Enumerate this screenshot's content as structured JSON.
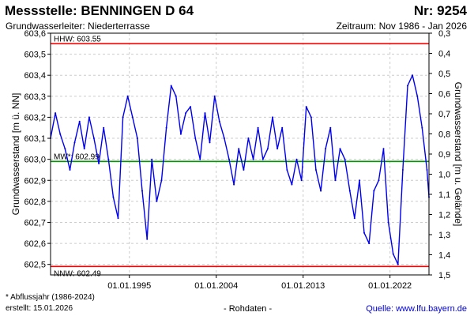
{
  "header": {
    "title": "Messstelle: BENNINGEN D 64",
    "number": "Nr: 9254",
    "aquifer": "Grundwasserleiter:  Niederterrasse",
    "period": "Zeitraum: Nov 1986 - Jan 2026"
  },
  "footer": {
    "footnote": "* Abflussjahr (1986-2024)",
    "created": "erstellt:  15.01.2026",
    "rawdata": "- Rohdaten -",
    "source": "Quelle: www.lfu.bayern.de"
  },
  "colors": {
    "series": "#0000ee",
    "extreme_lines": "#ff0000",
    "mean_line": "#009900",
    "grid": "#cccccc"
  },
  "chart_data": {
    "type": "line",
    "ylabel": "Grundwasserstand [m ü. NN]",
    "y2label": "Grundwasserstand [m u. Gelände]",
    "xlim": [
      "1986-11-01",
      "2026-01-15"
    ],
    "ylim": [
      602.45,
      603.6
    ],
    "y2lim": [
      1.5,
      0.3
    ],
    "yticks": [
      "602,5",
      "602,6",
      "602,7",
      "602,8",
      "602,9",
      "603,0",
      "603,1",
      "603,2",
      "603,3",
      "603,4",
      "603,5",
      "603,6"
    ],
    "y2ticks": [
      "1,5",
      "1,4",
      "1,3",
      "1,2",
      "1,1",
      "1,0",
      "0,9",
      "0,8",
      "0,7",
      "0,6",
      "0,5",
      "0,4",
      "0,3"
    ],
    "xticks": [
      {
        "date": "1995-01-01",
        "label": "01.01.1995"
      },
      {
        "date": "2004-01-01",
        "label": "01.01.2004"
      },
      {
        "date": "2013-01-01",
        "label": "01.01.2013"
      },
      {
        "date": "2022-01-01",
        "label": "01.01.2022"
      }
    ],
    "grid": true,
    "reference_lines": [
      {
        "label": "HHW: 603.55",
        "value": 603.55,
        "kind": "max"
      },
      {
        "label": "MW*: 602.99",
        "value": 602.99,
        "kind": "mean"
      },
      {
        "label": "NNW: 602.49",
        "value": 602.49,
        "kind": "min"
      }
    ],
    "series": [
      {
        "x": [
          "1986-11-01",
          "1987-05-01",
          "1987-11-01",
          "1988-05-01",
          "1988-11-01",
          "1989-05-01",
          "1989-11-01",
          "1990-05-01",
          "1990-11-01",
          "1991-05-01",
          "1991-11-01",
          "1992-05-01",
          "1992-11-01",
          "1993-05-01",
          "1993-11-01",
          "1994-05-01",
          "1994-11-01",
          "1995-05-01",
          "1995-11-01",
          "1996-05-01",
          "1996-11-01",
          "1997-05-01",
          "1997-11-01",
          "1998-05-01",
          "1998-11-01",
          "1999-05-01",
          "1999-11-01",
          "2000-05-01",
          "2000-11-01",
          "2001-05-01",
          "2001-11-01",
          "2002-05-01",
          "2002-11-01",
          "2003-05-01",
          "2003-11-01",
          "2004-05-01",
          "2004-11-01",
          "2005-05-01",
          "2005-11-01",
          "2006-05-01",
          "2006-11-01",
          "2007-05-01",
          "2007-11-01",
          "2008-05-01",
          "2008-11-01",
          "2009-05-01",
          "2009-11-01",
          "2010-05-01",
          "2010-11-01",
          "2011-05-01",
          "2011-11-01",
          "2012-05-01",
          "2012-11-01",
          "2013-05-01",
          "2013-11-01",
          "2014-05-01",
          "2014-11-01",
          "2015-05-01",
          "2015-11-01",
          "2016-05-01",
          "2016-11-01",
          "2017-05-01",
          "2017-11-01",
          "2018-05-01",
          "2018-11-01",
          "2019-05-01",
          "2019-11-01",
          "2020-05-01",
          "2020-11-01",
          "2021-05-01",
          "2021-11-01",
          "2022-05-01",
          "2022-11-01",
          "2023-05-01",
          "2023-11-01",
          "2024-05-01",
          "2024-11-01",
          "2025-05-01",
          "2025-11-01",
          "2026-01-15"
        ],
        "y": [
          603.1,
          603.22,
          603.12,
          603.05,
          602.95,
          603.08,
          603.18,
          603.05,
          603.2,
          603.1,
          602.98,
          603.15,
          603.0,
          602.82,
          602.72,
          603.2,
          603.3,
          603.2,
          603.1,
          602.85,
          602.62,
          603.0,
          602.8,
          602.9,
          603.15,
          603.35,
          603.3,
          603.12,
          603.22,
          603.25,
          603.1,
          603.0,
          603.22,
          603.08,
          603.3,
          603.18,
          603.1,
          603.0,
          602.88,
          603.05,
          602.95,
          603.1,
          603.0,
          603.15,
          603.0,
          603.05,
          603.2,
          603.05,
          603.15,
          602.95,
          602.88,
          603.0,
          602.9,
          603.25,
          603.2,
          602.95,
          602.85,
          603.05,
          603.15,
          602.9,
          603.05,
          603.0,
          602.85,
          602.72,
          602.9,
          602.65,
          602.6,
          602.85,
          602.9,
          603.05,
          602.7,
          602.55,
          602.5,
          602.95,
          603.35,
          603.4,
          603.3,
          603.15,
          602.95,
          602.82
        ]
      }
    ]
  }
}
